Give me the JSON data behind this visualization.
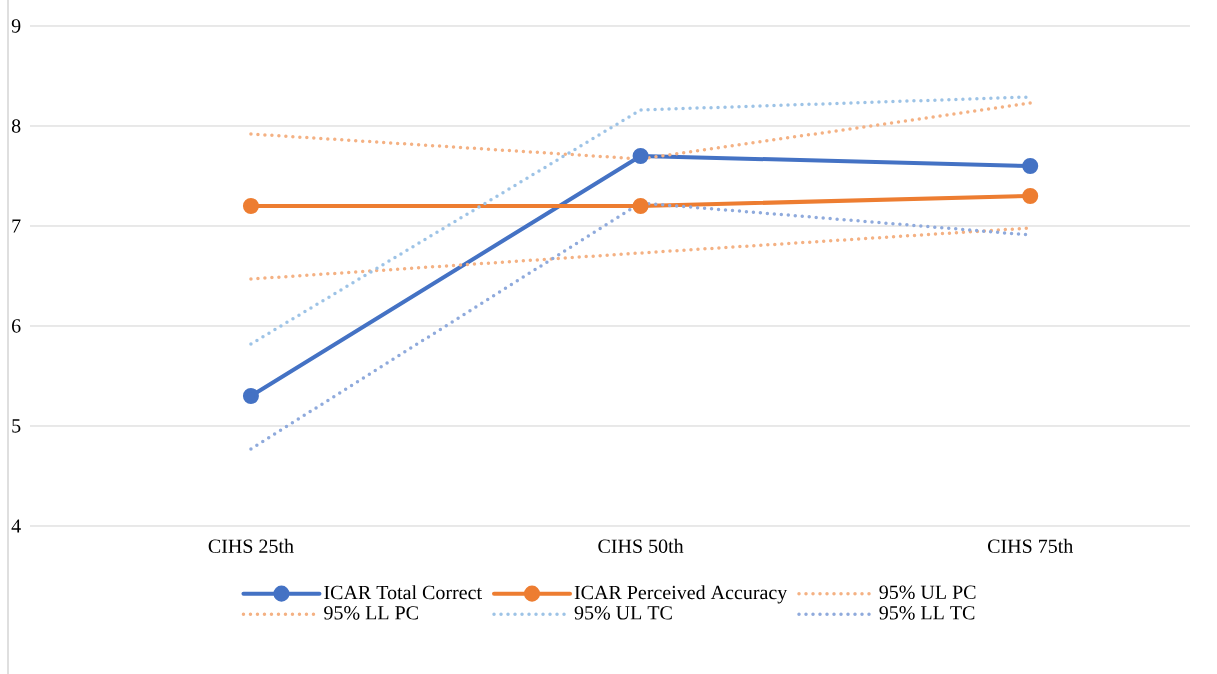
{
  "chart_data": {
    "type": "line",
    "categories": [
      "CIHS 25th",
      "CIHS 50th",
      "CIHS 75th"
    ],
    "series": [
      {
        "name": "ICAR Total Correct",
        "color": "#4472c4",
        "values": [
          5.3,
          7.7,
          7.6
        ],
        "marker": "circle",
        "line_style": "solid"
      },
      {
        "name": "ICAR Perceived Accuracy",
        "color": "#ed7d31",
        "values": [
          7.2,
          7.2,
          7.3
        ],
        "marker": "circle",
        "line_style": "solid"
      },
      {
        "name": "95% UL PC",
        "color": "#f4b183",
        "values": [
          7.92,
          7.67,
          8.23
        ],
        "marker": "none",
        "line_style": "dotted"
      },
      {
        "name": "95% LL PC",
        "color": "#f4b183",
        "values": [
          6.47,
          6.73,
          6.98
        ],
        "marker": "none",
        "line_style": "dotted"
      },
      {
        "name": "95% UL TC",
        "color": "#9dc3e6",
        "values": [
          5.82,
          8.16,
          8.29
        ],
        "marker": "none",
        "line_style": "dotted"
      },
      {
        "name": "95% LL TC",
        "color": "#8faadc",
        "values": [
          4.77,
          7.23,
          6.91
        ],
        "marker": "none",
        "line_style": "dotted"
      }
    ],
    "ylim": [
      4,
      9
    ],
    "yticks": [
      4,
      5,
      6,
      7,
      8,
      9
    ],
    "grid": "y",
    "legend": "bottom"
  }
}
